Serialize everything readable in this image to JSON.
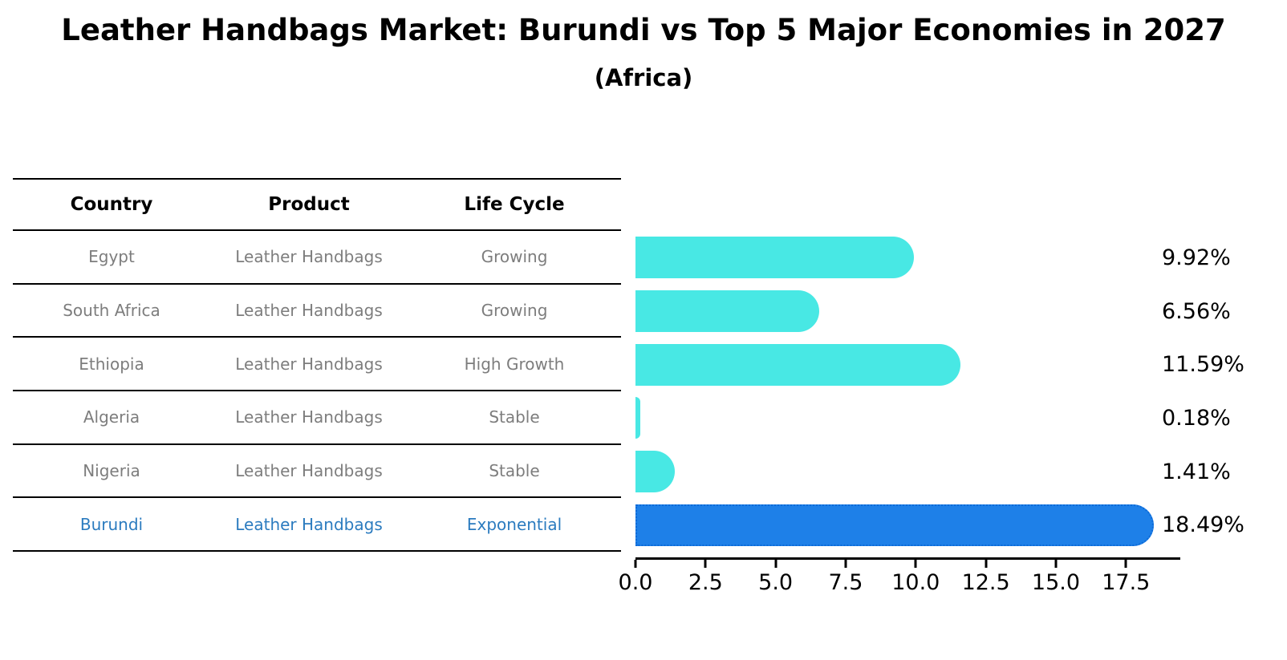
{
  "title": "Leather Handbags Market: Burundi vs Top 5 Major Economies in 2027",
  "subtitle": "(Africa)",
  "table": {
    "headers": [
      "Country",
      "Product",
      "Life Cycle"
    ],
    "rows": [
      {
        "country": "Egypt",
        "product": "Leather Handbags",
        "life_cycle": "Growing",
        "highlight": false
      },
      {
        "country": "South Africa",
        "product": "Leather Handbags",
        "life_cycle": "Growing",
        "highlight": false
      },
      {
        "country": "Ethiopia",
        "product": "Leather Handbags",
        "life_cycle": "High Growth",
        "highlight": false
      },
      {
        "country": "Algeria",
        "product": "Leather Handbags",
        "life_cycle": "Stable",
        "highlight": false
      },
      {
        "country": "Nigeria",
        "product": "Leather Handbags",
        "life_cycle": "Stable",
        "highlight": false
      },
      {
        "country": "Burundi",
        "product": "Leather Handbags",
        "life_cycle": "Exponential",
        "highlight": true
      }
    ]
  },
  "chart_data": {
    "type": "bar",
    "orientation": "horizontal",
    "categories": [
      "Egypt",
      "South Africa",
      "Ethiopia",
      "Algeria",
      "Nigeria",
      "Burundi"
    ],
    "values": [
      9.92,
      6.56,
      11.59,
      0.18,
      1.41,
      18.49
    ],
    "value_labels": [
      "9.92%",
      "6.56%",
      "11.59%",
      "0.18%",
      "1.41%",
      "18.49%"
    ],
    "x_tick_labels": [
      "0.0",
      "2.5",
      "5.0",
      "7.5",
      "10.0",
      "12.5",
      "15.0",
      "17.5"
    ],
    "x_tick_values": [
      0,
      2.5,
      5,
      7.5,
      10,
      12.5,
      15,
      17.5
    ],
    "xlim": [
      0,
      19.41
    ],
    "grid": false,
    "legend": false,
    "highlight_index": 5,
    "bar_color": "#48E8E4",
    "highlight_bar_color": "#1E80E8",
    "highlight_border_color": "#0C6AD8"
  },
  "colors": {
    "background": "#FFFFFF",
    "text": "#000000",
    "muted_text": "#7D7D7D",
    "highlight_text": "#2B7BBF",
    "line": "#000000"
  }
}
